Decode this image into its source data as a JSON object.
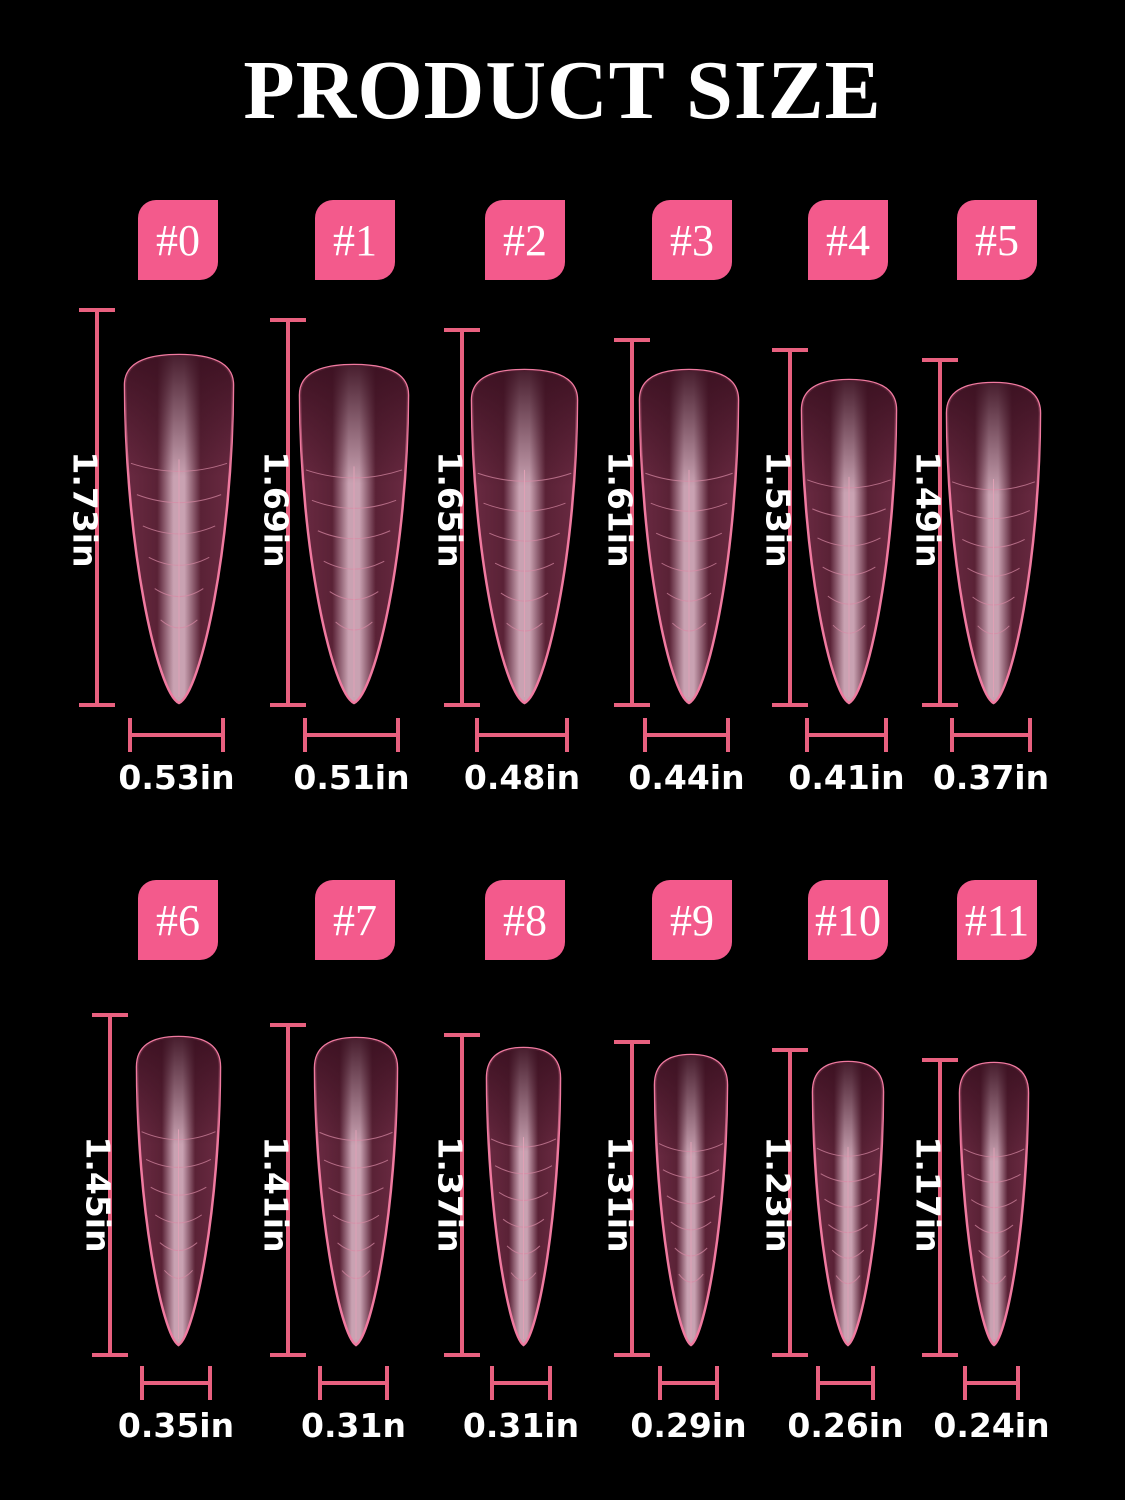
{
  "title": "PRODUCT SIZE",
  "accent_color": "#f35a8c",
  "sizes": [
    {
      "label": "#0",
      "length": "1.73in",
      "width": "0.53in"
    },
    {
      "label": "#1",
      "length": "1.69in",
      "width": "0.51in"
    },
    {
      "label": "#2",
      "length": "1.65in",
      "width": "0.48in"
    },
    {
      "label": "#3",
      "length": "1.61in",
      "width": "0.44in"
    },
    {
      "label": "#4",
      "length": "1.53in",
      "width": "0.41in"
    },
    {
      "label": "#5",
      "length": "1.49in",
      "width": "0.37in"
    },
    {
      "label": "#6",
      "length": "1.45in",
      "width": "0.35in"
    },
    {
      "label": "#7",
      "length": "1.41in",
      "width": "0.31n"
    },
    {
      "label": "#8",
      "length": "1.37in",
      "width": "0.31in"
    },
    {
      "label": "#9",
      "length": "1.31in",
      "width": "0.29in"
    },
    {
      "label": "#10",
      "length": "1.23in",
      "width": "0.26in"
    },
    {
      "label": "#11",
      "length": "1.17in",
      "width": "0.24in"
    }
  ]
}
